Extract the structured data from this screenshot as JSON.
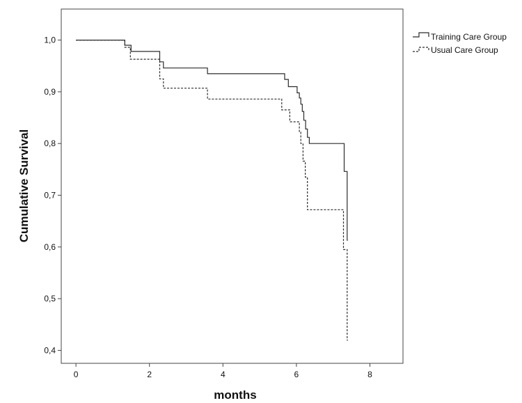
{
  "chart_data": {
    "type": "line",
    "subtype": "kaplan-meier-step",
    "xlabel": "months",
    "ylabel": "Cumulative Survival",
    "xlim": [
      -0.4,
      8.9
    ],
    "ylim": [
      0.375,
      1.06
    ],
    "x_ticks": [
      0,
      2,
      4,
      6,
      8
    ],
    "x_tick_labels": [
      "0",
      "2",
      "4",
      "6",
      "8"
    ],
    "y_ticks": [
      0.4,
      0.5,
      0.6,
      0.7,
      0.8,
      0.9,
      1.0
    ],
    "y_tick_labels": [
      "0,4",
      "0,5",
      "0,6",
      "0,7",
      "0,8",
      "0,9",
      "1,0"
    ],
    "grid": false,
    "legend_position": "top-right-outside",
    "series": [
      {
        "name": "Training Care Group",
        "line_style": "solid",
        "color": "#2b2b2b",
        "points": [
          [
            0,
            1.0
          ],
          [
            1.33,
            1.0
          ],
          [
            1.33,
            0.99
          ],
          [
            1.5,
            0.99
          ],
          [
            1.5,
            0.978
          ],
          [
            2.28,
            0.978
          ],
          [
            2.28,
            0.958
          ],
          [
            2.38,
            0.958
          ],
          [
            2.38,
            0.946
          ],
          [
            3.58,
            0.946
          ],
          [
            3.58,
            0.935
          ],
          [
            5.68,
            0.935
          ],
          [
            5.68,
            0.924
          ],
          [
            5.78,
            0.924
          ],
          [
            5.78,
            0.91
          ],
          [
            6.02,
            0.91
          ],
          [
            6.02,
            0.898
          ],
          [
            6.08,
            0.898
          ],
          [
            6.08,
            0.888
          ],
          [
            6.12,
            0.888
          ],
          [
            6.12,
            0.876
          ],
          [
            6.16,
            0.876
          ],
          [
            6.16,
            0.862
          ],
          [
            6.2,
            0.862
          ],
          [
            6.2,
            0.845
          ],
          [
            6.25,
            0.845
          ],
          [
            6.25,
            0.828
          ],
          [
            6.3,
            0.828
          ],
          [
            6.3,
            0.812
          ],
          [
            6.35,
            0.812
          ],
          [
            6.35,
            0.8
          ],
          [
            7.3,
            0.8
          ],
          [
            7.3,
            0.746
          ],
          [
            7.38,
            0.746
          ],
          [
            7.38,
            0.613
          ],
          [
            7.4,
            0.613
          ]
        ]
      },
      {
        "name": "Usual Care Group",
        "line_style": "dashed",
        "color": "#2b2b2b",
        "points": [
          [
            0,
            1.0
          ],
          [
            1.33,
            1.0
          ],
          [
            1.33,
            0.986
          ],
          [
            1.48,
            0.986
          ],
          [
            1.48,
            0.963
          ],
          [
            2.28,
            0.963
          ],
          [
            2.28,
            0.925
          ],
          [
            2.38,
            0.925
          ],
          [
            2.38,
            0.907
          ],
          [
            3.58,
            0.907
          ],
          [
            3.58,
            0.886
          ],
          [
            5.6,
            0.886
          ],
          [
            5.6,
            0.865
          ],
          [
            5.82,
            0.865
          ],
          [
            5.82,
            0.842
          ],
          [
            6.08,
            0.842
          ],
          [
            6.08,
            0.822
          ],
          [
            6.12,
            0.822
          ],
          [
            6.12,
            0.8
          ],
          [
            6.18,
            0.8
          ],
          [
            6.18,
            0.766
          ],
          [
            6.24,
            0.766
          ],
          [
            6.24,
            0.735
          ],
          [
            6.3,
            0.735
          ],
          [
            6.3,
            0.672
          ],
          [
            7.28,
            0.672
          ],
          [
            7.28,
            0.595
          ],
          [
            7.38,
            0.595
          ],
          [
            7.38,
            0.42
          ],
          [
            7.4,
            0.42
          ]
        ]
      }
    ]
  }
}
